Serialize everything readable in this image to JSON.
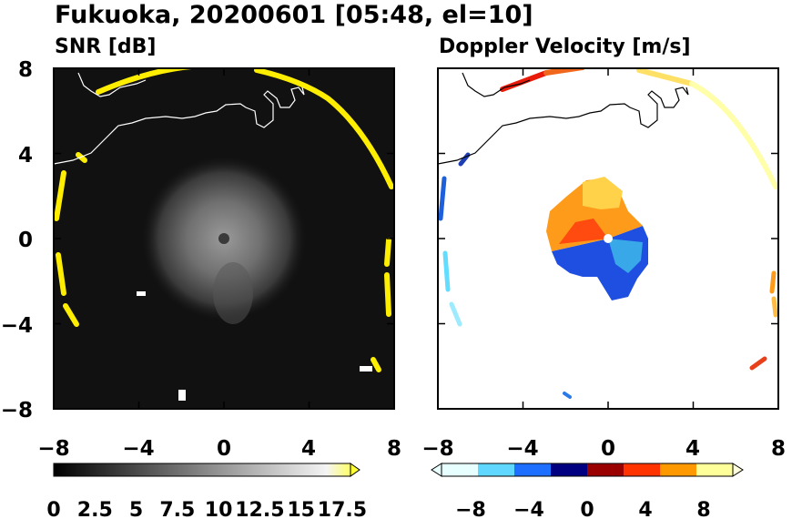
{
  "figure": {
    "title": "Fukuoka, 20200601 [05:48, el=10]"
  },
  "chart_data": [
    {
      "type": "heatmap",
      "title": "SNR [dB]",
      "xlim": [
        -8,
        8
      ],
      "ylim": [
        -8,
        8
      ],
      "xticks": [
        "−8",
        "−4",
        "0",
        "4",
        "8"
      ],
      "yticks": [
        "8",
        "4",
        "0",
        "−4",
        "−8"
      ],
      "grid": false,
      "background": "#111111",
      "colorbar": {
        "ticks": [
          "0",
          "2.5",
          "5",
          "7.5",
          "10",
          "12.5",
          "15",
          "17.5"
        ],
        "range": [
          0,
          18
        ],
        "extend": "max",
        "colors": [
          "#000000",
          "#ffffff",
          "#ffff00"
        ]
      },
      "features": {
        "echo_center": [
          0,
          0
        ],
        "echo_radius_km": 3.5,
        "ring_radius_km": 8,
        "ring_color": "#ffee00"
      }
    },
    {
      "type": "heatmap",
      "title": "Doppler Velocity [m/s]",
      "xlim": [
        -8,
        8
      ],
      "ylim": [
        -8,
        8
      ],
      "xticks": [
        "−8",
        "−4",
        "0",
        "4",
        "8"
      ],
      "yticks": [
        "8",
        "4",
        "0",
        "−4",
        "−8"
      ],
      "grid": false,
      "background": "#ffffff",
      "colorbar": {
        "ticks": [
          "−8",
          "−4",
          "0",
          "4",
          "8"
        ],
        "range": [
          -10,
          10
        ],
        "extend": "both",
        "colors": [
          "#e8ffff",
          "#5fd7ff",
          "#1e6fff",
          "#000080",
          "#9b0000",
          "#ff3300",
          "#ff9900",
          "#ffff99"
        ]
      },
      "features": {
        "echo_center": [
          0,
          0
        ],
        "echo_radius_km": 2.1
      }
    }
  ]
}
